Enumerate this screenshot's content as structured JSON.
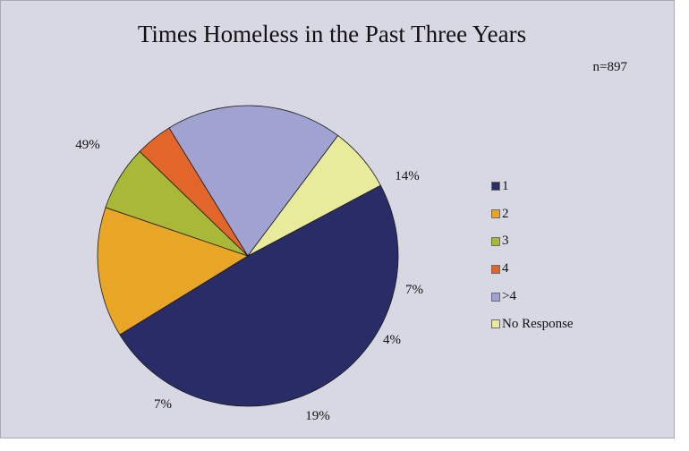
{
  "chart_data": {
    "type": "pie",
    "title": "Times Homeless in the Past Three Years",
    "subtitle": "n=897",
    "categories": [
      "1",
      "2",
      "3",
      "4",
      ">4",
      "No Response"
    ],
    "values": [
      49,
      14,
      7,
      4,
      19,
      7
    ],
    "labels": [
      "49%",
      "14%",
      "7%",
      "4%",
      "19%",
      "7%"
    ],
    "colors": [
      "#2a2c68",
      "#e9a525",
      "#a9b836",
      "#e2662a",
      "#a0a2d2",
      "#e8eb9c"
    ],
    "legend_position": "right"
  }
}
